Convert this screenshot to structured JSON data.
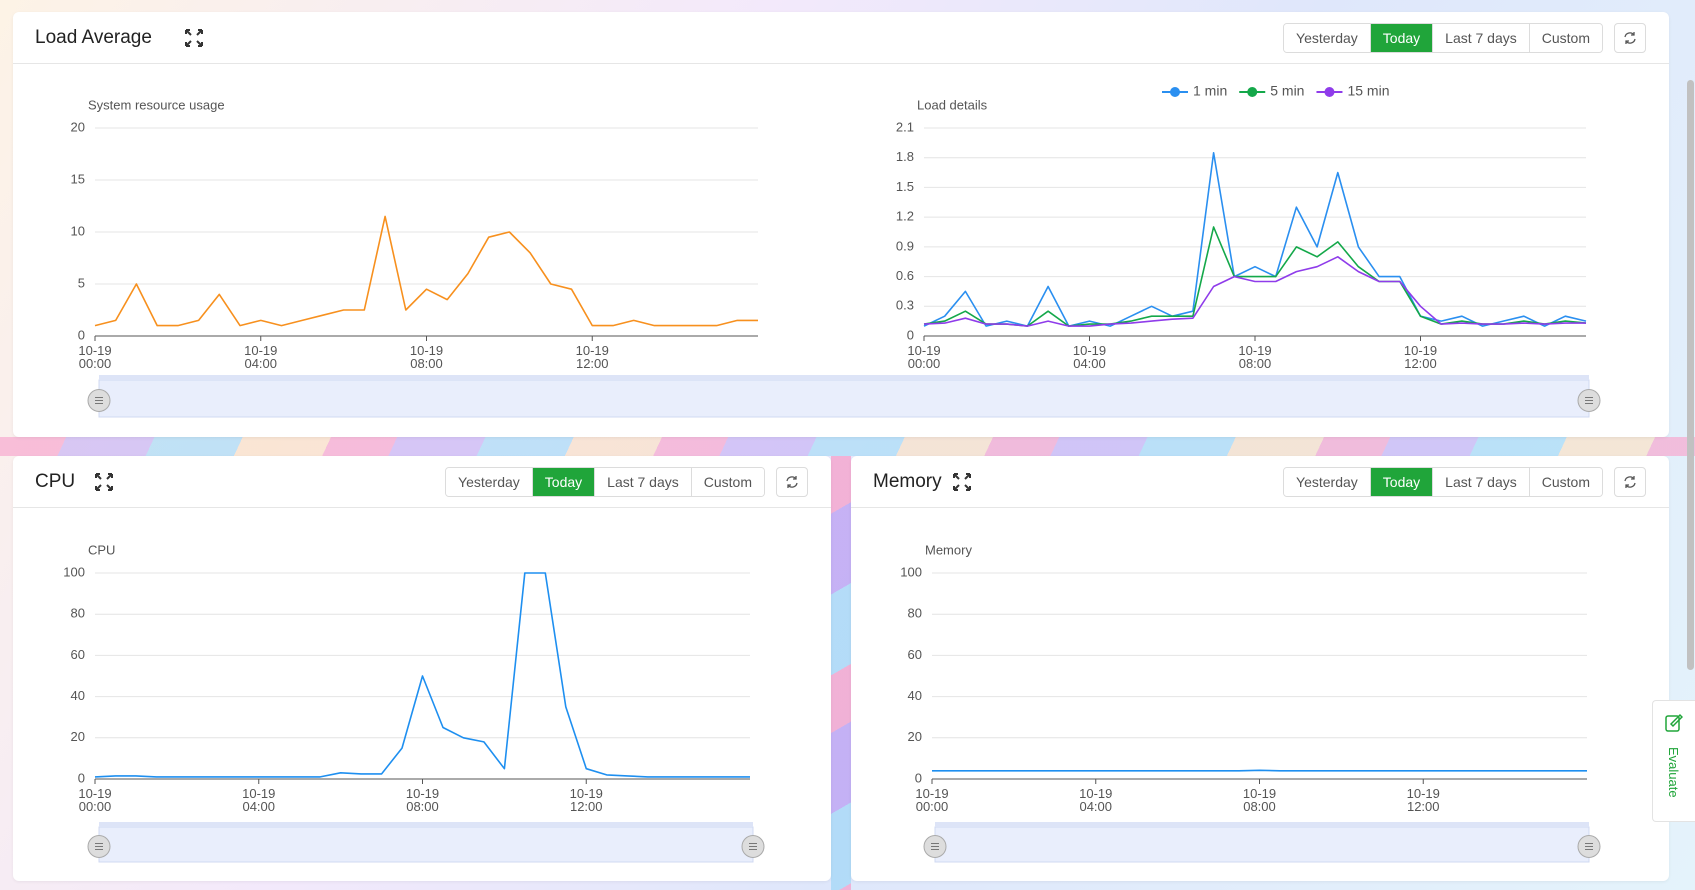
{
  "panels": [
    {
      "title": "Load Average",
      "buttons": [
        "Yesterday",
        "Today",
        "Last 7 days",
        "Custom"
      ],
      "active_button": 1
    },
    {
      "title": "CPU",
      "buttons": [
        "Yesterday",
        "Today",
        "Last 7 days",
        "Custom"
      ],
      "active_button": 1
    },
    {
      "title": "Memory",
      "buttons": [
        "Yesterday",
        "Today",
        "Last 7 days",
        "Custom"
      ],
      "active_button": 1
    }
  ],
  "side_tab": "Evaluate",
  "chart_data": [
    {
      "type": "line",
      "y_label": "System resource usage",
      "color": "#f7901e",
      "grid": true,
      "x": [
        "10-19 00:00",
        "10-19 00:30",
        "10-19 01:00",
        "10-19 01:30",
        "10-19 02:00",
        "10-19 02:30",
        "10-19 03:00",
        "10-19 03:30",
        "10-19 04:00",
        "10-19 04:30",
        "10-19 05:00",
        "10-19 05:30",
        "10-19 06:00",
        "10-19 06:30",
        "10-19 07:00",
        "10-19 07:30",
        "10-19 08:00",
        "10-19 08:30",
        "10-19 09:00",
        "10-19 09:30",
        "10-19 10:00",
        "10-19 10:30",
        "10-19 11:00",
        "10-19 11:30",
        "10-19 12:00",
        "10-19 12:30",
        "10-19 13:00",
        "10-19 13:30",
        "10-19 14:00",
        "10-19 14:30",
        "10-19 15:00",
        "10-19 15:30",
        "10-19 16:00"
      ],
      "values": [
        1,
        1.5,
        5,
        1,
        1,
        1.5,
        4,
        1,
        1.5,
        1,
        1.5,
        2,
        2.5,
        2.5,
        11.5,
        2.5,
        4.5,
        3.5,
        6,
        9.5,
        10,
        8,
        5,
        4.5,
        1,
        1,
        1.5,
        1,
        1,
        1,
        1,
        1.5,
        1.5
      ],
      "ylim": [
        0,
        20
      ],
      "yticks": [
        0,
        5,
        10,
        15,
        20
      ],
      "xticks": [
        "10-19 00:00",
        "10-19 04:00",
        "10-19 08:00",
        "10-19 12:00"
      ]
    },
    {
      "type": "line",
      "y_label": "Load details",
      "grid": true,
      "legend": "top",
      "x": [
        "10-19 00:00",
        "10-19 00:30",
        "10-19 01:00",
        "10-19 01:30",
        "10-19 02:00",
        "10-19 02:30",
        "10-19 03:00",
        "10-19 03:30",
        "10-19 04:00",
        "10-19 04:30",
        "10-19 05:00",
        "10-19 05:30",
        "10-19 06:00",
        "10-19 06:30",
        "10-19 07:00",
        "10-19 07:30",
        "10-19 08:00",
        "10-19 08:30",
        "10-19 09:00",
        "10-19 09:30",
        "10-19 10:00",
        "10-19 10:30",
        "10-19 11:00",
        "10-19 11:30",
        "10-19 12:00",
        "10-19 12:30",
        "10-19 13:00",
        "10-19 13:30",
        "10-19 14:00",
        "10-19 14:30",
        "10-19 15:00",
        "10-19 15:30",
        "10-19 16:00"
      ],
      "series": [
        {
          "name": "1 min",
          "color": "#2a8ff0",
          "values": [
            0.1,
            0.2,
            0.45,
            0.1,
            0.15,
            0.1,
            0.5,
            0.1,
            0.15,
            0.1,
            0.2,
            0.3,
            0.2,
            0.25,
            1.85,
            0.6,
            0.7,
            0.6,
            1.3,
            0.9,
            1.65,
            0.9,
            0.6,
            0.6,
            0.2,
            0.15,
            0.2,
            0.1,
            0.15,
            0.2,
            0.1,
            0.2,
            0.15
          ]
        },
        {
          "name": "5 min",
          "color": "#14a84a",
          "values": [
            0.12,
            0.15,
            0.25,
            0.12,
            0.12,
            0.1,
            0.25,
            0.1,
            0.12,
            0.12,
            0.15,
            0.2,
            0.2,
            0.2,
            1.1,
            0.6,
            0.6,
            0.6,
            0.9,
            0.8,
            0.95,
            0.7,
            0.55,
            0.55,
            0.2,
            0.12,
            0.15,
            0.12,
            0.12,
            0.15,
            0.12,
            0.15,
            0.13
          ]
        },
        {
          "name": "15 min",
          "color": "#8f3cea",
          "values": [
            0.12,
            0.13,
            0.18,
            0.12,
            0.12,
            0.1,
            0.15,
            0.1,
            0.1,
            0.12,
            0.13,
            0.15,
            0.17,
            0.18,
            0.5,
            0.6,
            0.55,
            0.55,
            0.65,
            0.7,
            0.8,
            0.65,
            0.55,
            0.55,
            0.3,
            0.12,
            0.13,
            0.12,
            0.12,
            0.13,
            0.12,
            0.13,
            0.13
          ]
        }
      ],
      "ylim": [
        0,
        2.1
      ],
      "yticks": [
        0,
        0.3,
        0.6,
        0.9,
        1.2,
        1.5,
        1.8,
        2.1
      ],
      "xticks": [
        "10-19 00:00",
        "10-19 04:00",
        "10-19 08:00",
        "10-19 12:00"
      ]
    },
    {
      "type": "line",
      "y_label": "CPU",
      "color": "#1e8ff0",
      "grid": true,
      "x": [
        "10-19 00:00",
        "10-19 00:30",
        "10-19 01:00",
        "10-19 01:30",
        "10-19 02:00",
        "10-19 02:30",
        "10-19 03:00",
        "10-19 03:30",
        "10-19 04:00",
        "10-19 04:30",
        "10-19 05:00",
        "10-19 05:30",
        "10-19 06:00",
        "10-19 06:30",
        "10-19 07:00",
        "10-19 07:30",
        "10-19 08:00",
        "10-19 08:30",
        "10-19 09:00",
        "10-19 09:30",
        "10-19 10:00",
        "10-19 10:30",
        "10-19 11:00",
        "10-19 11:30",
        "10-19 12:00",
        "10-19 12:30",
        "10-19 13:00",
        "10-19 13:30",
        "10-19 14:00",
        "10-19 14:30",
        "10-19 15:00",
        "10-19 15:30",
        "10-19 16:00"
      ],
      "values": [
        1,
        1.5,
        1.5,
        1,
        1,
        1,
        1,
        1,
        1,
        1,
        1,
        1,
        3,
        2.5,
        2.5,
        15,
        50,
        25,
        20,
        18,
        5,
        100,
        100,
        35,
        5,
        2,
        1.5,
        1,
        1,
        1,
        1,
        1,
        1
      ],
      "ylim": [
        0,
        100
      ],
      "yticks": [
        0,
        20,
        40,
        60,
        80,
        100
      ],
      "xticks": [
        "10-19 00:00",
        "10-19 04:00",
        "10-19 08:00",
        "10-19 12:00"
      ]
    },
    {
      "type": "line",
      "y_label": "Memory",
      "color": "#1e8ff0",
      "grid": true,
      "x": [
        "10-19 00:00",
        "10-19 00:30",
        "10-19 01:00",
        "10-19 01:30",
        "10-19 02:00",
        "10-19 02:30",
        "10-19 03:00",
        "10-19 03:30",
        "10-19 04:00",
        "10-19 04:30",
        "10-19 05:00",
        "10-19 05:30",
        "10-19 06:00",
        "10-19 06:30",
        "10-19 07:00",
        "10-19 07:30",
        "10-19 08:00",
        "10-19 08:30",
        "10-19 09:00",
        "10-19 09:30",
        "10-19 10:00",
        "10-19 10:30",
        "10-19 11:00",
        "10-19 11:30",
        "10-19 12:00",
        "10-19 12:30",
        "10-19 13:00",
        "10-19 13:30",
        "10-19 14:00",
        "10-19 14:30",
        "10-19 15:00",
        "10-19 15:30",
        "10-19 16:00"
      ],
      "values": [
        4,
        4,
        4,
        4,
        4,
        4,
        4,
        4,
        4,
        4,
        4,
        4,
        4,
        4,
        4,
        4,
        4.2,
        4,
        4,
        4,
        4,
        4,
        4,
        4,
        4,
        4,
        4,
        4,
        4,
        4,
        4,
        4,
        4
      ],
      "ylim": [
        0,
        100
      ],
      "yticks": [
        0,
        20,
        40,
        60,
        80,
        100
      ],
      "xticks": [
        "10-19 00:00",
        "10-19 04:00",
        "10-19 08:00",
        "10-19 12:00"
      ]
    }
  ]
}
